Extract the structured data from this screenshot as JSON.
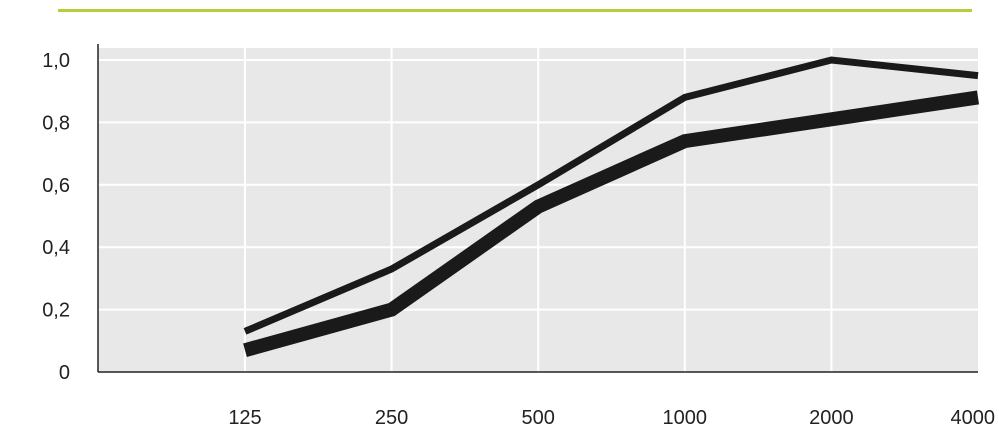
{
  "colors": {
    "accent_rule": "#b5cf3c",
    "plot_background": "#e8e8e8",
    "grid": "#ffffff",
    "axis": "#222222",
    "series": "#1a1a1a"
  },
  "chart_data": {
    "type": "line",
    "title": "",
    "xlabel": "",
    "ylabel": "",
    "x_scale": "log",
    "categories": [
      "125",
      "250",
      "500",
      "1000",
      "2000",
      "4000"
    ],
    "x": [
      125,
      250,
      500,
      1000,
      2000,
      4000
    ],
    "y_ticks": [
      "1,0",
      "0,8",
      "0,6",
      "0,4",
      "0,2",
      "0"
    ],
    "y_tick_values": [
      1.0,
      0.8,
      0.6,
      0.4,
      0.2,
      0.0
    ],
    "ylim": [
      0,
      1.0
    ],
    "grid": true,
    "legend": "none",
    "series": [
      {
        "values": [
          0.13,
          0.33,
          0.6,
          0.88,
          1.0,
          0.95
        ],
        "style": "thin"
      },
      {
        "values": [
          0.07,
          0.2,
          0.53,
          0.74,
          0.81,
          0.88
        ],
        "style": "thick"
      }
    ]
  }
}
